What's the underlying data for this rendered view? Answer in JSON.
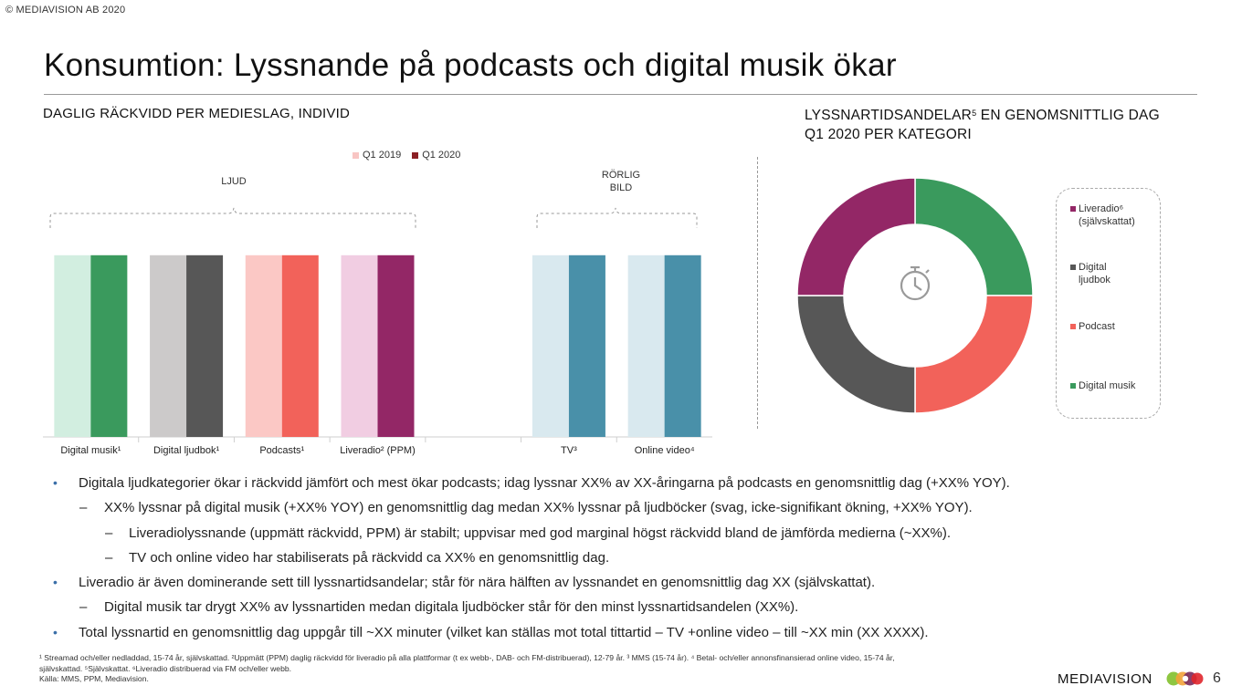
{
  "copyright": "© MEDIAVISION AB 2020",
  "title": "Konsumtion: Lyssnande på podcasts och digital musik ökar",
  "left_heading": "DAGLIG RÄCKVIDD PER MEDIESLAG, INDIVID",
  "right_heading": {
    "line1_pre": "LYSSNARTIDSANDELAR",
    "line1_sup": "5",
    "line1_post": " EN GENOMSNITTLIG DAG",
    "line2": "Q1 2020 PER KATEGORI"
  },
  "legend": [
    {
      "label": "Q1 2019",
      "color": "#f8c5c3"
    },
    {
      "label": "Q1 2020",
      "color": "#8b1f24"
    }
  ],
  "groups": {
    "audio": "LJUD",
    "moving_line1": "RÖRLIG",
    "moving_line2": "BILD"
  },
  "chart_data": [
    {
      "type": "bar",
      "title": "DAGLIG RÄCKVIDD PER MEDIESLAG, INDIVID",
      "categories": [
        "Digital musik¹",
        "Digital ljudbok¹",
        "Podcasts¹",
        "Liveradio² (PPM)",
        "",
        "TV³",
        "Online video⁴"
      ],
      "series": [
        {
          "name": "Q1 2019",
          "values": [
            1,
            1,
            1,
            1,
            null,
            1,
            1
          ]
        },
        {
          "name": "Q1 2020",
          "values": [
            1,
            1,
            1,
            1,
            null,
            1,
            1
          ]
        }
      ],
      "colors": {
        "Q1 2019": [
          "#d2eee0",
          "#cccaca",
          "#fbc8c5",
          "#f1cde2",
          null,
          "#d9e9ef",
          "#d9e9ef"
        ],
        "Q1 2020": [
          "#3a9a5d",
          "#575757",
          "#f2625a",
          "#932766",
          null,
          "#4990a9",
          "#4990a9"
        ]
      },
      "ylim": [
        0,
        1.25
      ],
      "xlabel": "",
      "ylabel": ""
    },
    {
      "type": "pie",
      "title": "LYSSNARTIDSANDELAR EN GENOMSNITTLIG DAG Q1 2020 PER KATEGORI",
      "labels": [
        "Digital musik",
        "Podcast",
        "Digital ljudbok",
        "Liveradio⁶ (självskattat)"
      ],
      "values": [
        25,
        25,
        25,
        25
      ],
      "colors": [
        "#3a9a5d",
        "#f2625a",
        "#575757",
        "#932766"
      ]
    }
  ],
  "pie_legend": [
    {
      "line1": "Liveradio⁶",
      "line2": "(självskattat)",
      "color": "#932766"
    },
    {
      "line1": "Digital",
      "line2": "ljudbok",
      "color": "#575757"
    },
    {
      "line1": "Podcast",
      "line2": "",
      "color": "#f2625a"
    },
    {
      "line1": "Digital musik",
      "line2": "",
      "color": "#3a9a5d"
    }
  ],
  "bullets": [
    {
      "level": 1,
      "text": "Digitala ljudkategorier ökar i räckvidd jämfört och mest ökar podcasts; idag lyssnar XX% av XX-åringarna på podcasts en genomsnittlig dag (+XX% YOY)."
    },
    {
      "level": 2,
      "text": "XX% lyssnar på digital musik (+XX% YOY) en genomsnittlig dag medan XX% lyssnar på ljudböcker (svag, icke-signifikant ökning, +XX% YOY)."
    },
    {
      "level": 3,
      "text": "Liveradiolyssnande (uppmätt räckvidd, PPM) är stabilt; uppvisar med god marginal högst räckvidd bland de jämförda medierna (~XX%)."
    },
    {
      "level": 3,
      "text": "TV och online video har stabiliserats på räckvidd ca XX% en genomsnittlig dag."
    },
    {
      "level": 1,
      "text": "Liveradio är även dominerande sett till lyssnartidsandelar; står för nära hälften av lyssnandet en genomsnittlig dag XX (självskattat)."
    },
    {
      "level": 2,
      "text": "Digital musik tar drygt XX% av lyssnartiden medan digitala ljudböcker står för den minst lyssnartidsandelen (XX%)."
    },
    {
      "level": 1,
      "text": "Total lyssnartid en genomsnittlig dag uppgår till ~XX minuter (vilket kan ställas mot total tittartid – TV +online video – till ~XX min (XX XXXX)."
    }
  ],
  "bullet_marks": {
    "level1": "•",
    "level2": "–",
    "level3": "–"
  },
  "footnote": {
    "line1": "¹ Streamad och/eller nedladdad, 15-74 år, självskattad. ²Uppmätt (PPM) daglig räckvidd för liveradio på alla plattformar (t ex webb-, DAB- och FM-distribuerad), 12-79 år. ³ MMS (15-74 år). ⁴ Betal- och/eller annonsfinansierad online video, 15-74 år,",
    "line2": "självskattad. ⁵Självskattat. ⁶Liveradio distribuerad via FM och/eller webb.",
    "line3": "Källa: MMS, PPM, Mediavision."
  },
  "brand": "MEDIAVISION",
  "page_number": "6"
}
